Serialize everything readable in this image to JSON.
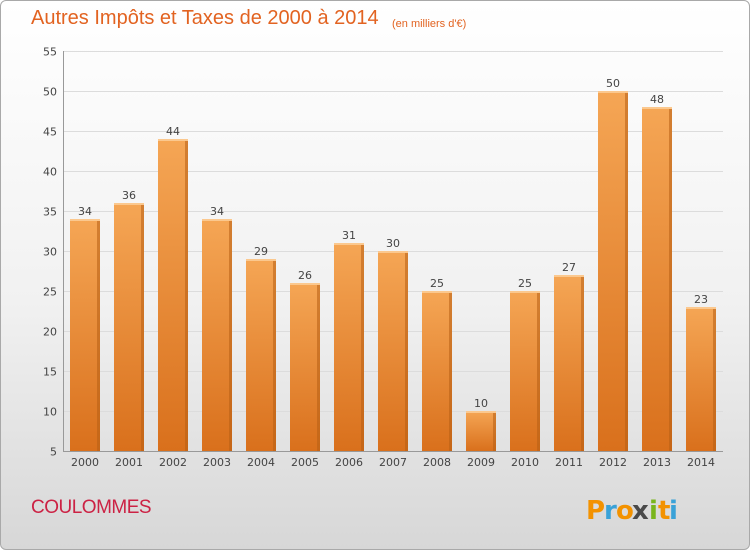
{
  "title": "Autres Impôts et Taxes de 2000 à 2014",
  "subtitle": "(en milliers d'€)",
  "commune": "COULOMMES",
  "brand": {
    "text": "Proxiti",
    "letters": [
      "P",
      "r",
      "o",
      "x",
      "i",
      "t",
      "i"
    ],
    "colors": [
      "#f39200",
      "#3aa2d8",
      "#f39200",
      "#4a4a4a",
      "#7ab51d",
      "#f39200",
      "#3aa2d8"
    ]
  },
  "colors": {
    "bar_top": "#f5a655",
    "bar_bottom": "#d9701c",
    "bar_side": "#b75e14",
    "accent": "#e26321"
  },
  "chart_data": {
    "type": "bar",
    "categories": [
      "2000",
      "2001",
      "2002",
      "2003",
      "2004",
      "2005",
      "2006",
      "2007",
      "2008",
      "2009",
      "2010",
      "2011",
      "2012",
      "2013",
      "2014"
    ],
    "values": [
      34,
      36,
      44,
      34,
      29,
      26,
      31,
      30,
      25,
      10,
      25,
      27,
      50,
      48,
      23
    ],
    "yticks": [
      "5",
      "10",
      "15",
      "20",
      "25",
      "30",
      "35",
      "40",
      "45",
      "50",
      "55"
    ],
    "ylim": [
      5,
      55
    ],
    "grid": true,
    "data_labels": true
  }
}
